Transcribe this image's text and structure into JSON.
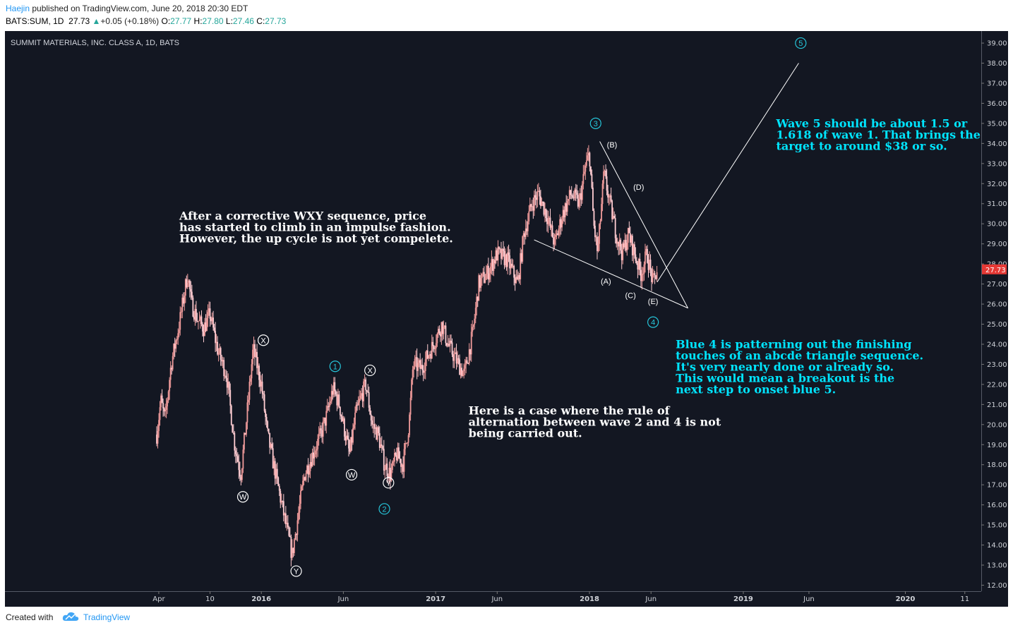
{
  "header": {
    "author": "Haejin",
    "published": " published on TradingView.com, June 20, 2018 20:30 EDT",
    "symbol": "BATS:SUM, 1D",
    "last": "27.73",
    "change_arrow": "▲",
    "change": "+0.05 (+0.18%)",
    "o_label": "O:",
    "o_val": "27.77",
    "h_label": "H:",
    "h_val": "27.80",
    "l_label": "L:",
    "l_val": "27.46",
    "c_label": "C:",
    "c_val": "27.73"
  },
  "footer": {
    "created_with": "Created with",
    "brand": "TradingView"
  },
  "colors": {
    "chart_bg": "#131722",
    "text_white": "#ffffff",
    "annotation_cyan": "#00e5ff",
    "wave_cyan": "#26c6da",
    "price_label": "#e53935",
    "candle_up": "#ef9a9a",
    "candle_down": "#ffcdd2"
  },
  "chart_data": {
    "type": "candlestick",
    "title": "SUMMIT MATERIALS, INC. CLASS A, 1D, BATS",
    "ylim": [
      11.7,
      39.6
    ],
    "xlim": [
      0,
      47.6
    ],
    "y_ticks": [
      "12.00",
      "13.00",
      "14.00",
      "15.00",
      "16.00",
      "17.00",
      "18.00",
      "19.00",
      "20.00",
      "21.00",
      "22.00",
      "23.00",
      "24.00",
      "25.00",
      "26.00",
      "27.00",
      "28.00",
      "29.00",
      "30.00",
      "31.00",
      "32.00",
      "33.00",
      "34.00",
      "35.00",
      "36.00",
      "37.00",
      "38.00",
      "39.00"
    ],
    "x_ticks": [
      {
        "label": "Apr",
        "m": 7.5
      },
      {
        "label": "10",
        "m": 10.0
      },
      {
        "label": "2016",
        "m": 12.5
      },
      {
        "label": "Jun",
        "m": 16.5
      },
      {
        "label": "2017",
        "m": 21.0
      },
      {
        "label": "Jun",
        "m": 24.0
      },
      {
        "label": "2018",
        "m": 28.5
      },
      {
        "label": "Jun",
        "m": 31.5
      },
      {
        "label": "2019",
        "m": 36.0
      },
      {
        "label": "Jun",
        "m": 39.2
      },
      {
        "label": "2020",
        "m": 43.9
      },
      {
        "label": "11",
        "m": 46.8
      }
    ],
    "last_price": "27.73",
    "price_path": [
      [
        7.4,
        19.5
      ],
      [
        7.6,
        21.2
      ],
      [
        7.8,
        20.2
      ],
      [
        8.1,
        23.0
      ],
      [
        8.5,
        25.0
      ],
      [
        8.9,
        27.5
      ],
      [
        9.1,
        26.0
      ],
      [
        9.4,
        25.2
      ],
      [
        9.7,
        24.8
      ],
      [
        10.0,
        25.5
      ],
      [
        10.2,
        24.5
      ],
      [
        10.4,
        23.6
      ],
      [
        10.8,
        22.5
      ],
      [
        11.2,
        19.0
      ],
      [
        11.5,
        17.5
      ],
      [
        11.8,
        20.5
      ],
      [
        12.1,
        23.8
      ],
      [
        12.5,
        22.0
      ],
      [
        12.8,
        19.5
      ],
      [
        13.1,
        18.0
      ],
      [
        13.4,
        16.5
      ],
      [
        13.7,
        15.0
      ],
      [
        14.0,
        13.5
      ],
      [
        14.3,
        15.5
      ],
      [
        14.6,
        17.5
      ],
      [
        15.0,
        18.5
      ],
      [
        15.4,
        19.5
      ],
      [
        15.7,
        20.5
      ],
      [
        16.0,
        21.8
      ],
      [
        16.3,
        21.0
      ],
      [
        16.6,
        19.5
      ],
      [
        16.8,
        18.5
      ],
      [
        17.1,
        20.5
      ],
      [
        17.4,
        21.5
      ],
      [
        17.6,
        22.0
      ],
      [
        17.9,
        20.0
      ],
      [
        18.2,
        19.5
      ],
      [
        18.5,
        18.0
      ],
      [
        18.8,
        17.5
      ],
      [
        19.1,
        18.5
      ],
      [
        19.4,
        18.0
      ],
      [
        19.7,
        20.0
      ],
      [
        19.9,
        23.0
      ],
      [
        20.3,
        22.8
      ],
      [
        20.8,
        23.8
      ],
      [
        21.3,
        25.0
      ],
      [
        21.6,
        24.0
      ],
      [
        22.0,
        23.2
      ],
      [
        22.4,
        22.5
      ],
      [
        22.8,
        24.5
      ],
      [
        23.1,
        27.0
      ],
      [
        23.5,
        27.5
      ],
      [
        24.0,
        28.5
      ],
      [
        24.5,
        28.2
      ],
      [
        25.0,
        27.0
      ],
      [
        25.3,
        29.5
      ],
      [
        25.7,
        31.0
      ],
      [
        26.0,
        31.5
      ],
      [
        26.4,
        30.5
      ],
      [
        26.8,
        29.0
      ],
      [
        27.2,
        30.5
      ],
      [
        27.6,
        31.5
      ],
      [
        28.0,
        31.0
      ],
      [
        28.3,
        32.8
      ],
      [
        28.5,
        33.5
      ],
      [
        28.7,
        30.0
      ],
      [
        28.9,
        28.5
      ],
      [
        29.2,
        32.5
      ],
      [
        29.5,
        31.0
      ],
      [
        29.8,
        29.5
      ],
      [
        30.1,
        28.5
      ],
      [
        30.4,
        29.5
      ],
      [
        30.7,
        28.5
      ],
      [
        31.0,
        27.5
      ],
      [
        31.3,
        28.5
      ],
      [
        31.6,
        27.0
      ],
      [
        31.8,
        27.73
      ]
    ],
    "trendlines": [
      {
        "from": [
          29.0,
          34.1
        ],
        "to": [
          33.3,
          25.8
        ]
      },
      {
        "from": [
          25.8,
          29.2
        ],
        "to": [
          33.3,
          25.8
        ]
      },
      {
        "from": [
          31.8,
          27.1
        ],
        "to": [
          38.7,
          38.0
        ]
      }
    ],
    "wave_labels": [
      {
        "text": "3",
        "m": 28.8,
        "p": 35.0,
        "style": "cyan"
      },
      {
        "text": "5",
        "m": 38.8,
        "p": 39.0,
        "style": "cyan"
      },
      {
        "text": "4",
        "m": 31.6,
        "p": 25.1,
        "style": "cyan"
      },
      {
        "text": "1",
        "m": 16.1,
        "p": 22.9,
        "style": "cyan"
      },
      {
        "text": "2",
        "m": 18.5,
        "p": 15.8,
        "style": "cyan"
      },
      {
        "text": "X",
        "m": 12.6,
        "p": 24.2,
        "style": "white"
      },
      {
        "text": "W",
        "m": 11.6,
        "p": 16.4,
        "style": "white"
      },
      {
        "text": "Y",
        "m": 14.2,
        "p": 12.7,
        "style": "white"
      },
      {
        "text": "X",
        "m": 17.8,
        "p": 22.7,
        "style": "white"
      },
      {
        "text": "W",
        "m": 16.9,
        "p": 17.5,
        "style": "white"
      },
      {
        "text": "Y",
        "m": 18.7,
        "p": 17.1,
        "style": "white"
      }
    ],
    "abcde_labels": [
      {
        "text": "(B)",
        "m": 29.6,
        "p": 33.8
      },
      {
        "text": "(D)",
        "m": 30.9,
        "p": 31.7
      },
      {
        "text": "(A)",
        "m": 29.3,
        "p": 27.0
      },
      {
        "text": "(C)",
        "m": 30.5,
        "p": 26.3
      },
      {
        "text": "(E)",
        "m": 31.6,
        "p": 26.0
      }
    ],
    "annotations": [
      {
        "color": "cyan",
        "lines": [
          "Wave 5 should be about 1.5 or",
          "1.618 of wave 1. That brings the",
          "target to around $38 or so."
        ],
        "m": 37.6,
        "p": 34.8
      },
      {
        "color": "white",
        "lines": [
          "After a corrective WXY sequence, price",
          "has started to climb in an impulse fashion.",
          "However, the up cycle is not yet compelete."
        ],
        "m": 8.5,
        "p": 30.2
      },
      {
        "color": "cyan",
        "lines": [
          "Blue 4 is patterning out the finishing",
          "touches of an abcde triangle sequence.",
          "It's very nearly done or already so.",
          "This would mean a breakout is the",
          "next step to onset blue 5."
        ],
        "m": 32.7,
        "p": 23.8
      },
      {
        "color": "white",
        "lines": [
          "Here is a case where the rule of",
          "alternation between wave 2 and 4 is not",
          "being carried out."
        ],
        "m": 22.6,
        "p": 20.5
      }
    ]
  }
}
